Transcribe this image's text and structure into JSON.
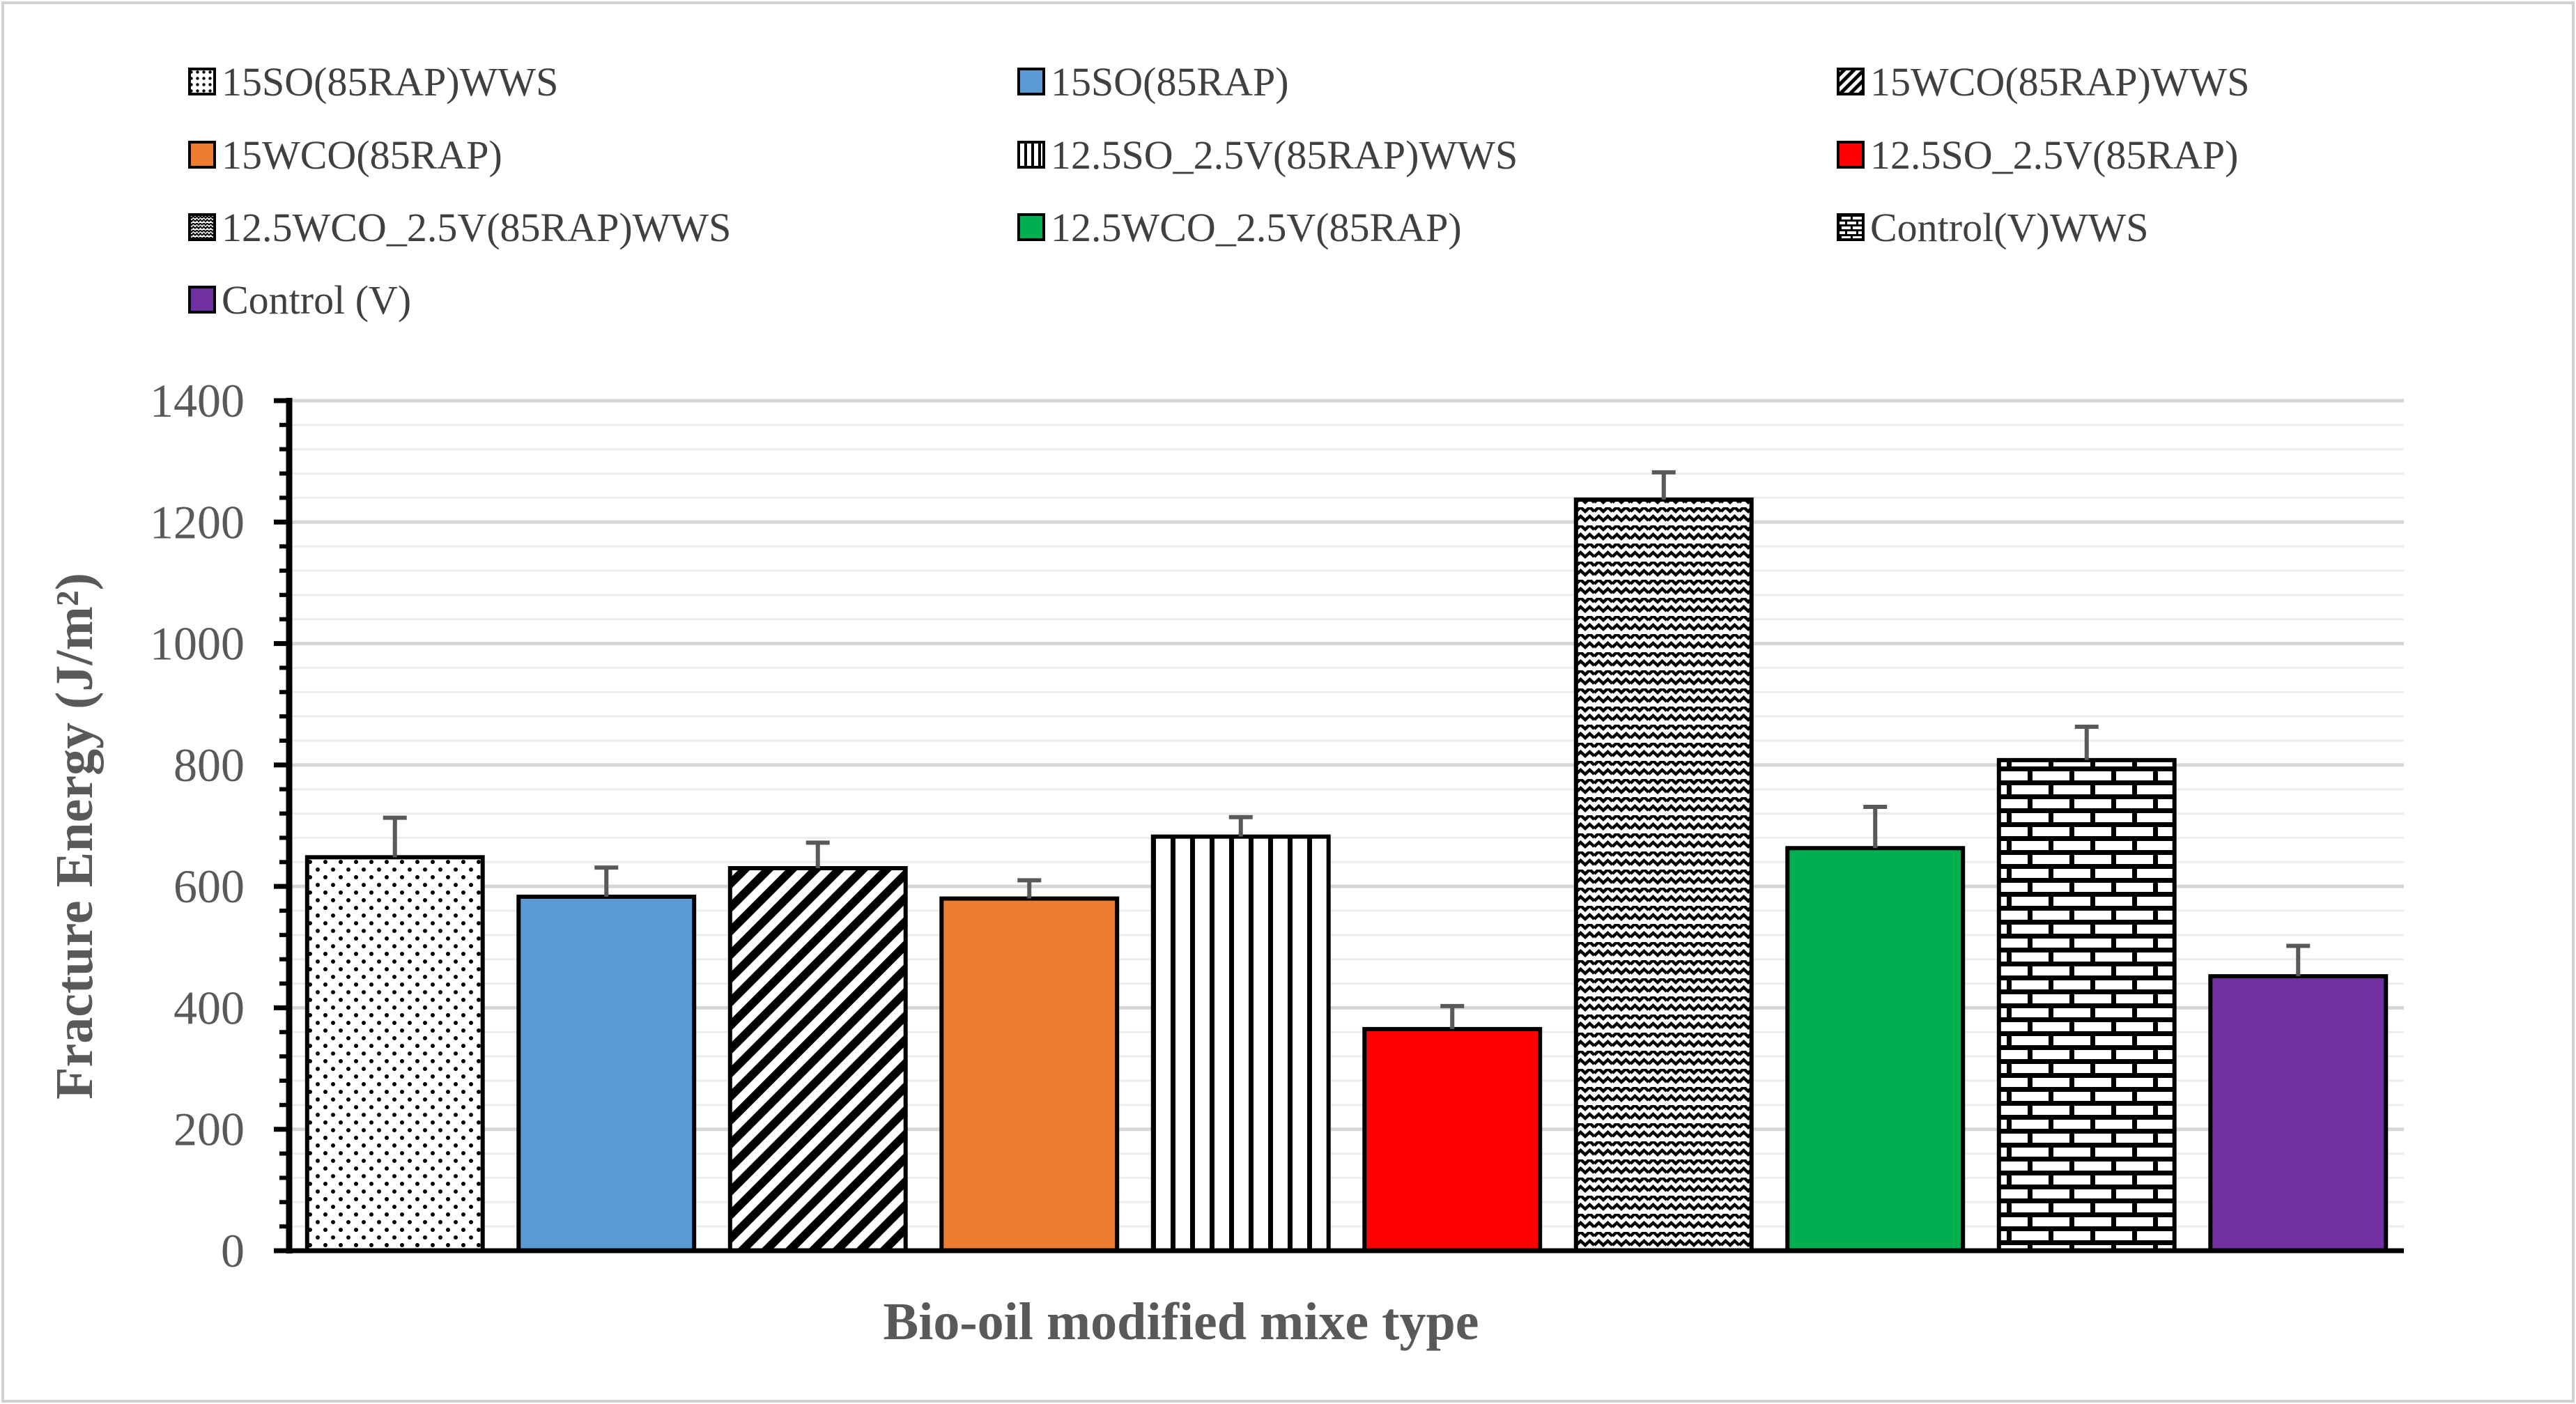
{
  "chart_data": {
    "type": "bar",
    "xlabel": "Bio-oil modified mixe type",
    "ylabel": "Fracture Energy (J/m²)",
    "ylim": [
      0,
      1400
    ],
    "yticks": [
      0,
      200,
      400,
      600,
      800,
      1000,
      1200,
      1400
    ],
    "grid": true,
    "legend_position": "top",
    "series": [
      {
        "name": "15SO(85RAP)WWS",
        "value": 648,
        "error": 65,
        "fill": "dots",
        "color": "#000000"
      },
      {
        "name": "15SO(85RAP)",
        "value": 583,
        "error": 48,
        "fill": "solid",
        "color": "#5B9BD5"
      },
      {
        "name": "15WCO(85RAP)WWS",
        "value": 630,
        "error": 42,
        "fill": "diagonal",
        "color": "#000000"
      },
      {
        "name": "15WCO(85RAP)",
        "value": 580,
        "error": 30,
        "fill": "solid",
        "color": "#ED7D31"
      },
      {
        "name": "12.5SO_2.5V(85RAP)WWS",
        "value": 682,
        "error": 32,
        "fill": "vertical",
        "color": "#000000"
      },
      {
        "name": "12.5SO_2.5V(85RAP)",
        "value": 365,
        "error": 38,
        "fill": "solid",
        "color": "#FF0000"
      },
      {
        "name": "12.5WCO_2.5V(85RAP)WWS",
        "value": 1237,
        "error": 45,
        "fill": "zigzag",
        "color": "#000000"
      },
      {
        "name": "12.5WCO_2.5V(85RAP)",
        "value": 663,
        "error": 68,
        "fill": "solid",
        "color": "#00B050"
      },
      {
        "name": "Control(V)WWS",
        "value": 808,
        "error": 55,
        "fill": "brick",
        "color": "#000000"
      },
      {
        "name": "Control (V)",
        "value": 452,
        "error": 50,
        "fill": "solid",
        "color": "#7030A0"
      }
    ]
  }
}
